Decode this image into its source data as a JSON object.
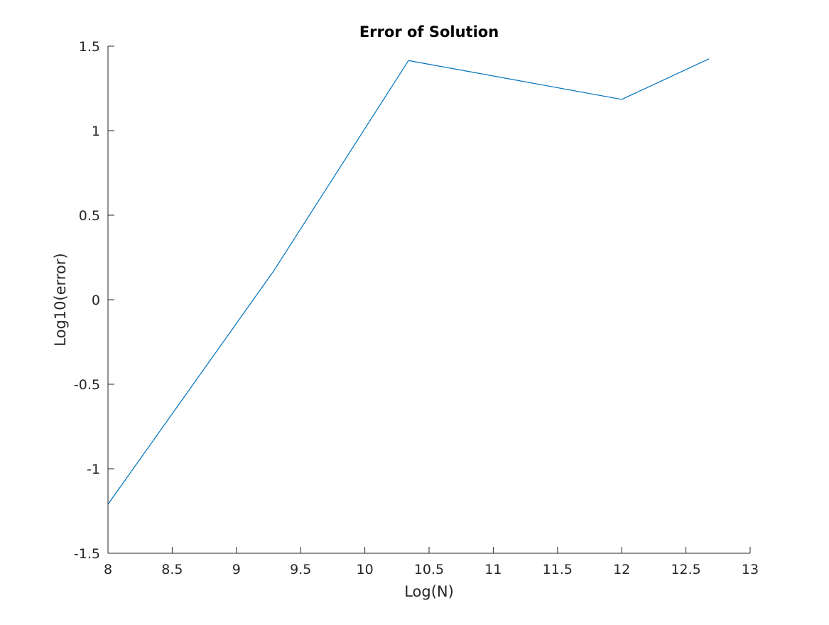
{
  "chart_data": {
    "type": "line",
    "title": "Error of Solution",
    "xlabel": "Log(N)",
    "ylabel": "Log10(error)",
    "xlim": [
      8,
      13
    ],
    "ylim": [
      -1.5,
      1.5
    ],
    "xticks": [
      8,
      8.5,
      9,
      9.5,
      10,
      10.5,
      11,
      11.5,
      12,
      12.5,
      13
    ],
    "xtick_labels": [
      "8",
      "8.5",
      "9",
      "9.5",
      "10",
      "10.5",
      "11",
      "11.5",
      "12",
      "12.5",
      "13"
    ],
    "yticks": [
      -1.5,
      -1,
      -0.5,
      0,
      0.5,
      1,
      1.5
    ],
    "ytick_labels": [
      "-1.5",
      "-1",
      "-0.5",
      "0",
      "0.5",
      "1",
      "1.5"
    ],
    "grid": false,
    "series": [
      {
        "color": "#0072bd",
        "x": [
          8,
          9.29,
          10.34,
          12,
          12.68
        ],
        "y": [
          -1.21,
          0.17,
          1.415,
          1.185,
          1.425
        ]
      }
    ]
  }
}
